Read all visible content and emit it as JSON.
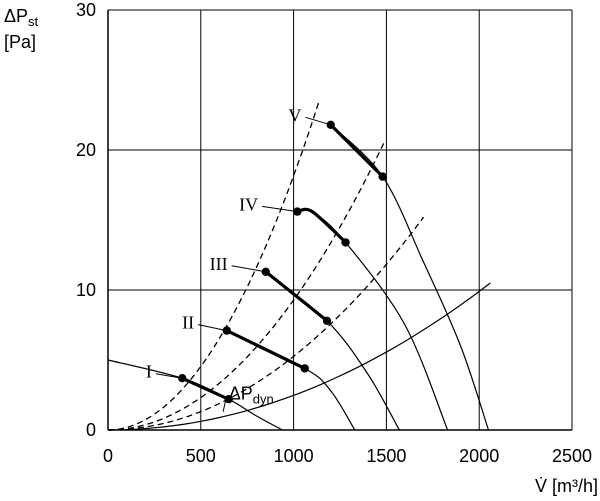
{
  "chart_data": {
    "type": "line",
    "ylabel_line1": "ΔP",
    "ylabel_sub": "st",
    "ylabel_line2": "[Pa]",
    "xlabel": "V̇ [m³/h]",
    "xlim": [
      0,
      2500
    ],
    "ylim": [
      0,
      30
    ],
    "xticks": [
      0,
      500,
      1000,
      1500,
      2000,
      2500
    ],
    "yticks": [
      0,
      10,
      20,
      30
    ],
    "grid": true,
    "fan_curves": [
      {
        "name": "I",
        "points": [
          [
            0,
            5
          ],
          [
            400,
            3.7
          ],
          [
            650,
            2.2
          ],
          [
            800,
            1.0
          ],
          [
            940,
            0
          ]
        ],
        "operating_range": [
          [
            400,
            3.7
          ],
          [
            650,
            2.2
          ]
        ]
      },
      {
        "name": "II",
        "points": [
          [
            640,
            7.1
          ],
          [
            1060,
            4.4
          ],
          [
            1200,
            2.8
          ],
          [
            1330,
            0
          ]
        ],
        "operating_range": [
          [
            640,
            7.1
          ],
          [
            1060,
            4.4
          ]
        ]
      },
      {
        "name": "III",
        "points": [
          [
            850,
            11.3
          ],
          [
            1180,
            7.8
          ],
          [
            1400,
            4.0
          ],
          [
            1570,
            0
          ]
        ],
        "operating_range": [
          [
            850,
            11.3
          ],
          [
            1180,
            7.8
          ]
        ]
      },
      {
        "name": "IV",
        "points": [
          [
            1020,
            15.6
          ],
          [
            1100,
            15.6
          ],
          [
            1280,
            13.4
          ],
          [
            1600,
            7.5
          ],
          [
            1830,
            0
          ]
        ],
        "operating_range": [
          [
            1020,
            15.6
          ],
          [
            1280,
            13.4
          ]
        ]
      },
      {
        "name": "V",
        "points": [
          [
            1200,
            21.8
          ],
          [
            1480,
            18.1
          ],
          [
            1700,
            12.0
          ],
          [
            1900,
            6.0
          ],
          [
            2050,
            0
          ]
        ],
        "operating_range": [
          [
            1200,
            21.8
          ],
          [
            1480,
            18.1
          ]
        ]
      }
    ],
    "system_curves_dashed": [
      {
        "end": [
          1140,
          23.6
        ]
      },
      {
        "end": [
          1490,
          20.6
        ]
      },
      {
        "end": [
          1700,
          15.2
        ]
      }
    ],
    "dynamic_pressure_curve": {
      "label_main": "ΔP",
      "label_sub": "dyn",
      "end": [
        2060,
        10.5
      ]
    }
  }
}
